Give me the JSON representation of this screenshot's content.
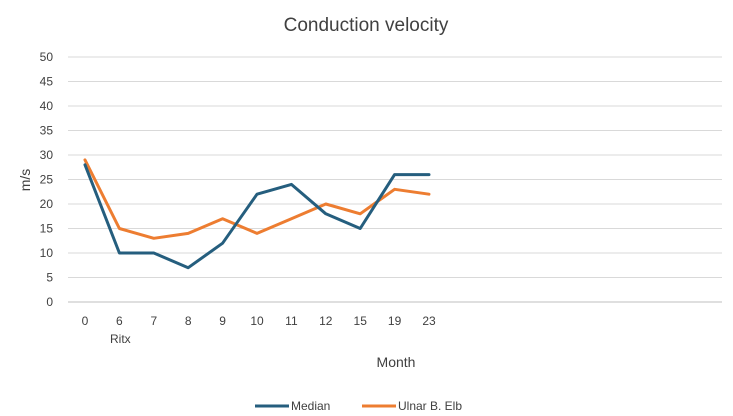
{
  "chart_data": {
    "type": "line",
    "title": "Conduction velocity",
    "xlabel": "Month",
    "ylabel": "m/s",
    "categories": [
      "0",
      "6",
      "7",
      "8",
      "9",
      "10",
      "11",
      "12",
      "15",
      "19",
      "23"
    ],
    "sublabel": "Ritx",
    "ylim": [
      0,
      50
    ],
    "yticks": [
      0,
      5,
      10,
      15,
      20,
      25,
      30,
      35,
      40,
      45,
      50
    ],
    "grid": true,
    "legend": "bottom",
    "series": [
      {
        "name": "Median",
        "color": "#255E7E",
        "values": [
          28,
          10,
          10,
          7,
          12,
          22,
          24,
          18,
          15,
          26,
          26
        ]
      },
      {
        "name": "Ulnar B. Elb",
        "color": "#ED7D31",
        "values": [
          29,
          15,
          13,
          14,
          17,
          14,
          17,
          20,
          18,
          23,
          22
        ]
      }
    ]
  }
}
